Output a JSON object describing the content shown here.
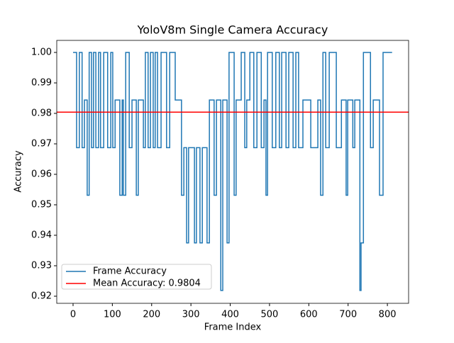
{
  "chart_data": {
    "type": "step",
    "title": "YoloV8m Single Camera Accuracy",
    "x_label": "Frame Index",
    "y_label": "Accuracy",
    "x": [
      0,
      9,
      16,
      23,
      29,
      36,
      41,
      47,
      52,
      58,
      65,
      70,
      78,
      88,
      96,
      101,
      107,
      119,
      125,
      128,
      134,
      143,
      150,
      161,
      166,
      179,
      184,
      191,
      197,
      204,
      209,
      215,
      224,
      238,
      246,
      260,
      276,
      282,
      289,
      294,
      309,
      314,
      323,
      329,
      341,
      347,
      359,
      365,
      376,
      381,
      392,
      397,
      410,
      415,
      428,
      437,
      442,
      450,
      460,
      468,
      479,
      486,
      491,
      495,
      507,
      516,
      525,
      531,
      542,
      549,
      560,
      567,
      574,
      585,
      605,
      623,
      630,
      636,
      643,
      652,
      670,
      683,
      695,
      699,
      712,
      717,
      730,
      733,
      739,
      757,
      764,
      780,
      789,
      812
    ],
    "series": [
      {
        "name": "Frame Accuracy",
        "color": "#1f77b4",
        "values": [
          1,
          0.96875,
          1,
          0.96875,
          0.984375,
          0.953125,
          1,
          0.96875,
          1,
          0.96875,
          1,
          0.96875,
          1,
          0.96875,
          1,
          0.96875,
          0.984375,
          0.953125,
          0.984375,
          0.953125,
          1,
          0.96875,
          0.984375,
          0.953125,
          0.984375,
          0.96875,
          1,
          0.96875,
          1,
          0.96875,
          1,
          0.96875,
          1,
          0.96875,
          1,
          0.984375,
          0.953125,
          0.96875,
          0.9375,
          0.96875,
          0.9375,
          0.96875,
          0.9375,
          0.96875,
          0.9375,
          0.984375,
          0.953125,
          0.984375,
          0.921875,
          0.984375,
          0.9375,
          1,
          0.953125,
          0.984375,
          1,
          0.96875,
          0.984375,
          1,
          0.96875,
          1,
          0.96875,
          0.984375,
          0.953125,
          1,
          0.96875,
          1,
          0.96875,
          1,
          0.96875,
          1,
          0.96875,
          1,
          0.96875,
          0.984375,
          0.96875,
          0.984375,
          0.953125,
          1,
          0.96875,
          1,
          0.96875,
          0.984375,
          0.953125,
          0.984375,
          0.96875,
          0.984375,
          0.921875,
          0.9375,
          1,
          0.96875,
          0.984375,
          0.953125,
          1,
          1
        ]
      }
    ],
    "mean": 0.9804,
    "mean_name": "Mean Accuracy: 0.9804",
    "mean_color": "#ff0000",
    "xlim": [
      -41.5,
      854
    ],
    "ylim": [
      0.91767,
      1.00395
    ],
    "xticks": [
      0,
      100,
      200,
      300,
      400,
      500,
      600,
      700,
      800
    ],
    "yticks": [
      0.92,
      0.93,
      0.94,
      0.95,
      0.96,
      0.97,
      0.98,
      0.99,
      {
        "value": 1,
        "label": "1.00"
      }
    ],
    "legend": "lower left"
  }
}
